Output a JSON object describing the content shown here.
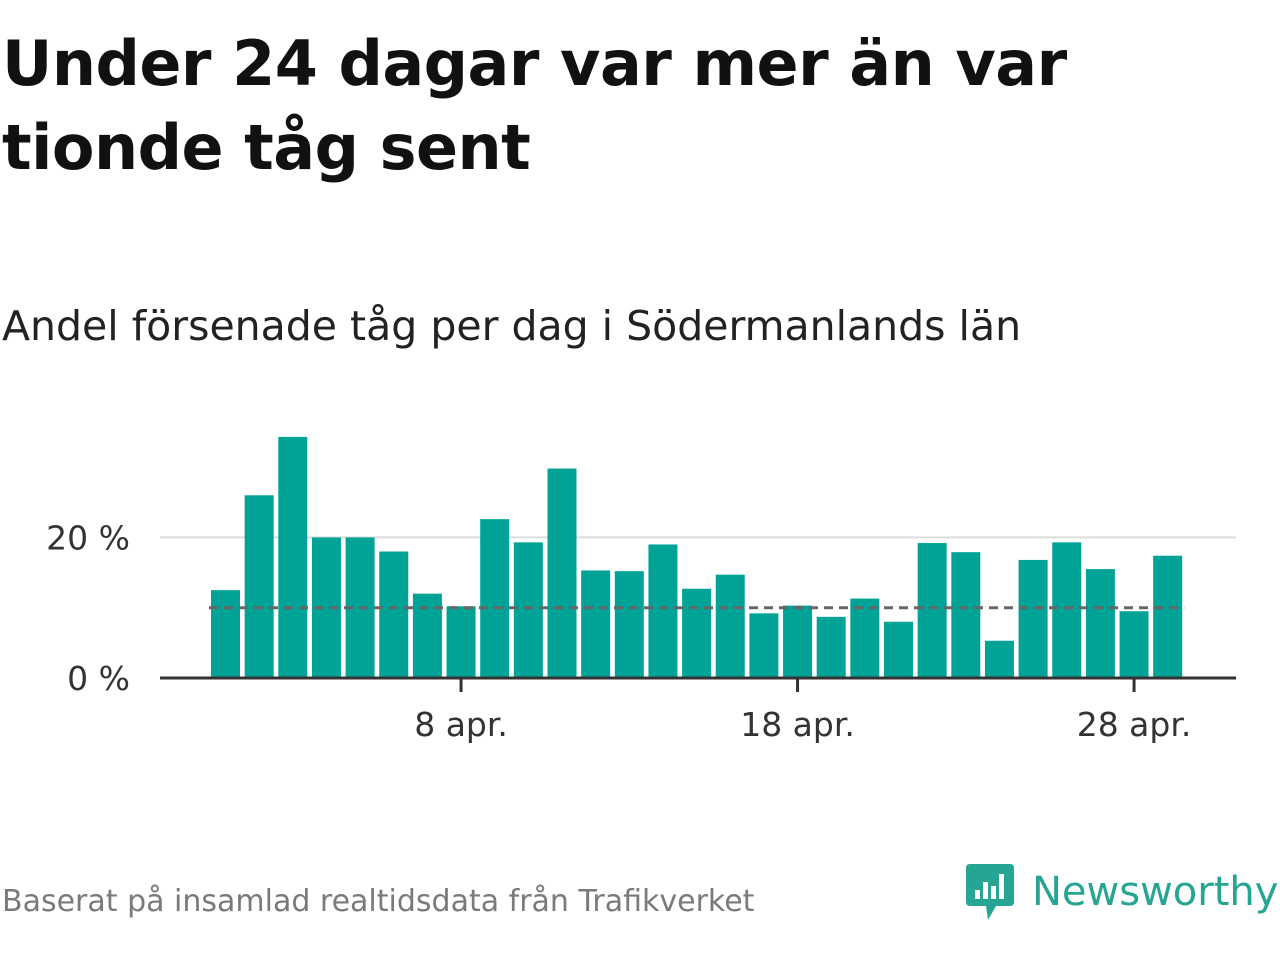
{
  "title": "Under 24 dagar var mer än var tionde tåg sent",
  "subtitle": "Andel försenade tåg per dag i Södermanlands län",
  "source": "Baserat på insamlad realtidsdata från Trafikverket",
  "brand": {
    "name": "Newsworthy",
    "logo_icon": "bar-chart-speech-bubble-icon",
    "color": "#26a592"
  },
  "colors": {
    "bar": "#00a396",
    "reference_line": "#666666",
    "grid": "#dddddd",
    "axis": "#333333"
  },
  "chart_data": {
    "type": "bar",
    "x": [
      "1 apr.",
      "2 apr.",
      "3 apr.",
      "4 apr.",
      "5 apr.",
      "6 apr.",
      "7 apr.",
      "8 apr.",
      "9 apr.",
      "10 apr.",
      "11 apr.",
      "12 apr.",
      "13 apr.",
      "14 apr.",
      "15 apr.",
      "16 apr.",
      "17 apr.",
      "18 apr.",
      "19 apr.",
      "20 apr.",
      "21 apr.",
      "22 apr.",
      "23 apr.",
      "24 apr.",
      "25 apr.",
      "26 apr.",
      "27 apr.",
      "28 apr.",
      "29 apr."
    ],
    "values": [
      12.5,
      26,
      34.3,
      20,
      20,
      18,
      12,
      10.2,
      22.6,
      19.3,
      29.8,
      15.3,
      15.2,
      19,
      12.7,
      14.7,
      9.2,
      10.3,
      8.7,
      11.3,
      8,
      19.2,
      17.9,
      5.3,
      16.8,
      19.3,
      15.5,
      9.5,
      17.4
    ],
    "reference_line": 10,
    "ylim": [
      0,
      35
    ],
    "yticks": [
      {
        "value": 0,
        "label": "0 %"
      },
      {
        "value": 20,
        "label": "20 %"
      }
    ],
    "xticks": [
      {
        "index": 7,
        "label": "8 apr."
      },
      {
        "index": 17,
        "label": "18 apr."
      },
      {
        "index": 27,
        "label": "28 apr."
      }
    ],
    "grid": true,
    "xlabel": "",
    "ylabel": ""
  }
}
